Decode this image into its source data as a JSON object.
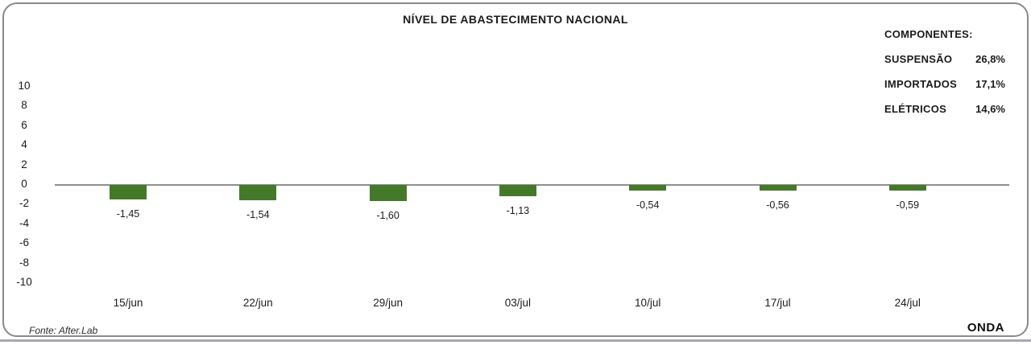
{
  "card": {
    "title": "NÍVEL DE ABASTECIMENTO NACIONAL",
    "source": "Fonte: After.Lab",
    "brand": "ONDA"
  },
  "components": {
    "heading": "COMPONENTES:",
    "items": [
      {
        "label": "SUSPENSÃO",
        "value": "26,8%"
      },
      {
        "label": "IMPORTADOS",
        "value": "17,1%"
      },
      {
        "label": "ELÉTRICOS",
        "value": "14,6%"
      }
    ]
  },
  "chart_data": {
    "type": "bar",
    "title": "NÍVEL DE ABASTECIMENTO NACIONAL",
    "categories": [
      "15/jun",
      "22/jun",
      "29/jun",
      "03/jul",
      "10/jul",
      "17/jul",
      "24/jul"
    ],
    "values": [
      -1.45,
      -1.54,
      -1.6,
      -1.13,
      -0.54,
      -0.56,
      -0.59
    ],
    "value_labels": [
      "-1,45",
      "-1,54",
      "-1,60",
      "-1,13",
      "-0,54",
      "-0,56",
      "-0,59"
    ],
    "y_ticks": [
      10,
      8,
      6,
      4,
      2,
      0,
      -2,
      -4,
      -6,
      -8,
      -10
    ],
    "ylim": [
      -10,
      10
    ],
    "xlabel": "",
    "ylabel": "",
    "grid": false,
    "legend_position": "top-right",
    "bar_color": "#45792a",
    "axis_color": "#8e8e8e",
    "border_color": "#8a8a8a"
  }
}
